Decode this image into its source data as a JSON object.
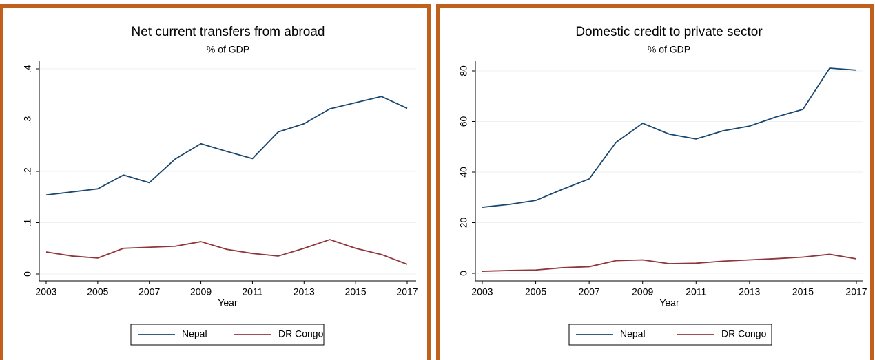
{
  "chart_data": [
    {
      "type": "line",
      "title": "Net current transfers from abroad",
      "subtitle": "% of GDP",
      "x_label": "Year",
      "x": [
        2003,
        2004,
        2005,
        2006,
        2007,
        2008,
        2009,
        2010,
        2011,
        2012,
        2013,
        2014,
        2015,
        2016,
        2017
      ],
      "xlim": [
        2003,
        2017
      ],
      "xticks": [
        2003,
        2005,
        2007,
        2009,
        2011,
        2013,
        2015,
        2017
      ],
      "ylim": [
        0,
        0.4
      ],
      "yticks": [
        0,
        {
          "value": 0.1,
          "label": ".1"
        },
        {
          "value": 0.2,
          "label": ".2"
        },
        {
          "value": 0.3,
          "label": ".3"
        },
        {
          "value": 0.4,
          "label": ".4"
        }
      ],
      "grid": true,
      "series": [
        {
          "name": "Nepal",
          "color": "#1a476f",
          "values": [
            0.154,
            0.16,
            0.166,
            0.193,
            0.178,
            0.224,
            0.254,
            0.239,
            0.225,
            0.277,
            0.293,
            0.322,
            0.334,
            0.346,
            0.323
          ]
        },
        {
          "name": "DR Congo",
          "color": "#90353b",
          "values": [
            0.043,
            0.035,
            0.031,
            0.05,
            0.052,
            0.054,
            0.063,
            0.048,
            0.04,
            0.035,
            0.05,
            0.067,
            0.05,
            0.038,
            0.019
          ]
        }
      ]
    },
    {
      "type": "line",
      "title": "Domestic credit to private sector",
      "subtitle": "% of GDP",
      "x_label": "Year",
      "x": [
        2003,
        2004,
        2005,
        2006,
        2007,
        2008,
        2009,
        2010,
        2011,
        2012,
        2013,
        2014,
        2015,
        2016,
        2017
      ],
      "xlim": [
        2003,
        2017
      ],
      "xticks": [
        2003,
        2005,
        2007,
        2009,
        2011,
        2013,
        2015,
        2017
      ],
      "ylim": [
        0,
        80
      ],
      "yticks": [
        0,
        20,
        40,
        60,
        80
      ],
      "grid": true,
      "series": [
        {
          "name": "Nepal",
          "color": "#1a476f",
          "values": [
            26.1,
            27.2,
            28.8,
            33.2,
            37.3,
            51.7,
            59.3,
            55.0,
            53.1,
            56.3,
            58.2,
            61.8,
            64.8,
            81.1,
            80.3
          ]
        },
        {
          "name": "DR Congo",
          "color": "#90353b",
          "values": [
            0.8,
            1.1,
            1.3,
            2.2,
            2.6,
            5.0,
            5.3,
            3.8,
            4.0,
            4.8,
            5.3,
            5.8,
            6.4,
            7.5,
            5.7
          ]
        }
      ]
    }
  ]
}
